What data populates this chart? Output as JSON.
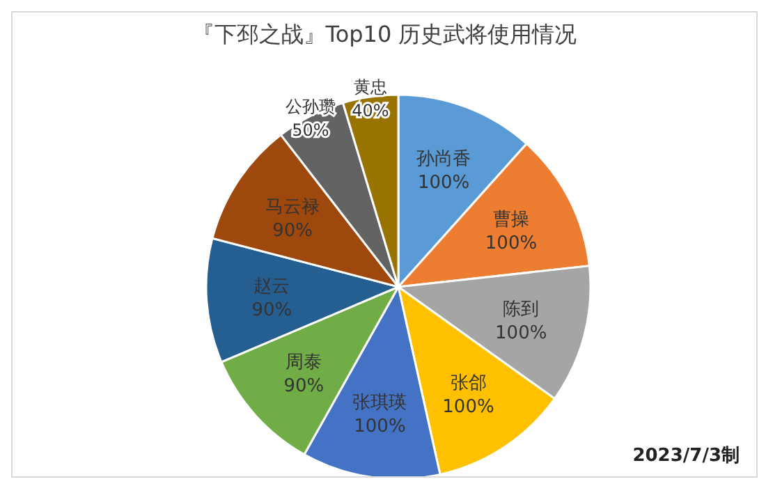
{
  "chart_data": {
    "type": "pie",
    "title": "『下邳之战』Top10 历史武将使用情况",
    "categories": [
      "孙尚香",
      "曹操",
      "陈到",
      "张郃",
      "张琪瑛",
      "周泰",
      "赵云",
      "马云禄",
      "公孙瓒",
      "黄忠"
    ],
    "values": [
      100,
      100,
      100,
      100,
      100,
      90,
      90,
      90,
      50,
      40
    ],
    "value_labels": [
      "100%",
      "100%",
      "100%",
      "100%",
      "100%",
      "90%",
      "90%",
      "90%",
      "50%",
      "40%"
    ],
    "colors": [
      "#5b9bd5",
      "#ed7d31",
      "#a5a5a5",
      "#ffc000",
      "#4472c4",
      "#70ad47",
      "#255e91",
      "#9e480e",
      "#636363",
      "#997300"
    ],
    "annotations": [
      "2023/7/3制"
    ],
    "legend": false
  }
}
